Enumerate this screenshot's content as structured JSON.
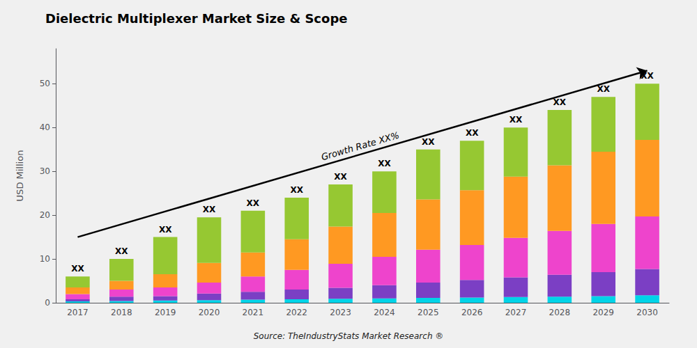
{
  "chart_data": {
    "type": "bar",
    "stacked": true,
    "title": "Dielectric Multiplexer Market Size & Scope",
    "ylabel": "USD Million",
    "source": "Source: TheIndustryStats Market Research ®",
    "categories": [
      "2017",
      "2018",
      "2019",
      "2020",
      "2021",
      "2022",
      "2023",
      "2024",
      "2025",
      "2026",
      "2027",
      "2028",
      "2029",
      "2030"
    ],
    "series": [
      {
        "color": "#00d4e8",
        "values": [
          0.3,
          0.4,
          0.5,
          0.6,
          0.7,
          0.8,
          0.9,
          1.0,
          1.1,
          1.2,
          1.3,
          1.4,
          1.5,
          1.7
        ]
      },
      {
        "color": "#7b3fc4",
        "values": [
          0.5,
          1.0,
          1.0,
          1.5,
          1.8,
          2.2,
          2.5,
          3.0,
          3.5,
          4.0,
          4.5,
          5.0,
          5.5,
          6.0
        ]
      },
      {
        "color": "#ee44cc",
        "values": [
          1.2,
          1.6,
          2.0,
          2.5,
          3.5,
          4.5,
          5.5,
          6.5,
          7.5,
          8.0,
          9.0,
          10.0,
          11.0,
          12.0
        ]
      },
      {
        "color": "#ff9922",
        "values": [
          1.5,
          2.0,
          3.0,
          4.5,
          5.5,
          7.0,
          8.5,
          10.0,
          11.5,
          12.5,
          14.0,
          15.0,
          16.5,
          17.5
        ]
      },
      {
        "color": "#96c832",
        "values": [
          2.5,
          5.0,
          8.5,
          10.4,
          9.5,
          9.5,
          9.6,
          9.5,
          11.4,
          11.3,
          11.2,
          12.6,
          12.5,
          12.8
        ]
      }
    ],
    "bar_labels": [
      "XX",
      "XX",
      "XX",
      "XX",
      "XX",
      "XX",
      "XX",
      "XX",
      "XX",
      "XX",
      "XX",
      "XX",
      "XX",
      "XX"
    ],
    "annotations": [
      {
        "text": "Growth Rate XX%",
        "arrow": {
          "from": [
            "2017",
            15
          ],
          "to": [
            "2030",
            53
          ]
        }
      }
    ],
    "ylim": [
      0,
      58
    ],
    "yticks": [
      0,
      10,
      20,
      30,
      40,
      50
    ],
    "grid": false
  }
}
